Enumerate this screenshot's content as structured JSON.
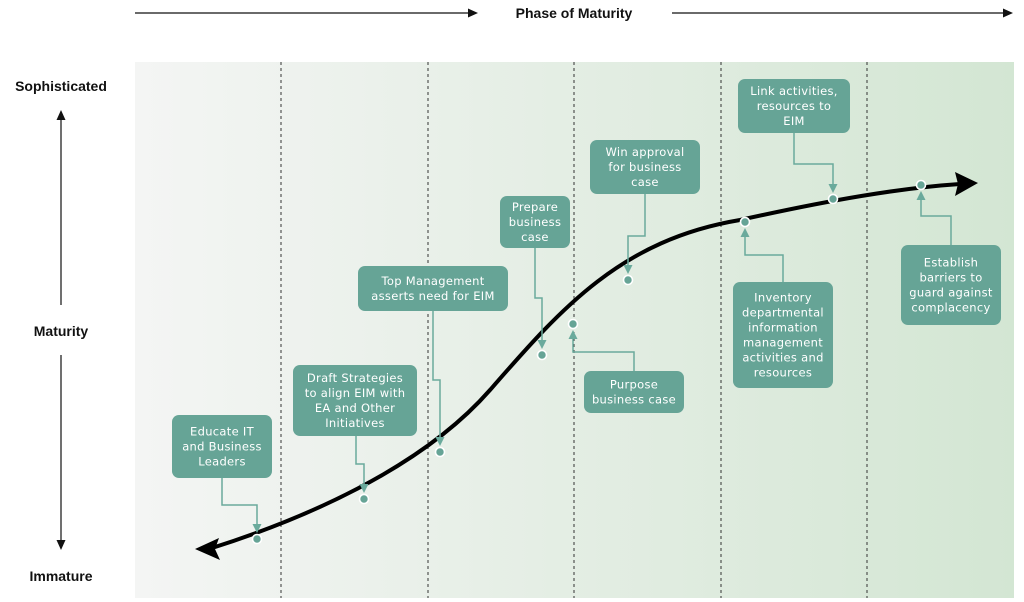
{
  "header": {
    "title": "Phase of Maturity"
  },
  "y_axis": {
    "top": "Sophisticated",
    "middle": "Maturity",
    "bottom": "Immature"
  },
  "colors": {
    "box": "#66a496",
    "connector": "#6aaa9c",
    "curve": "#000000",
    "band_start": "#f4f5f4",
    "band_end": "#d3e6d3",
    "divider": "#333333"
  },
  "steps": [
    {
      "id": "educate",
      "lines": [
        "Educate IT",
        "and Business",
        "Leaders"
      ]
    },
    {
      "id": "draft",
      "lines": [
        "Draft Strategies",
        "to align EIM with",
        "EA and Other",
        "Initiatives"
      ]
    },
    {
      "id": "topmgmt",
      "lines": [
        "Top Management",
        "asserts need for EIM"
      ]
    },
    {
      "id": "prepare",
      "lines": [
        "Prepare",
        "business",
        "case"
      ]
    },
    {
      "id": "purpose",
      "lines": [
        "Purpose",
        "business case"
      ]
    },
    {
      "id": "win",
      "lines": [
        "Win approval",
        "for business",
        "case"
      ]
    },
    {
      "id": "inventory",
      "lines": [
        "Inventory",
        "departmental",
        "information",
        "management",
        "activities and",
        "resources"
      ]
    },
    {
      "id": "link",
      "lines": [
        "Link activities,",
        "resources to",
        "EIM"
      ]
    },
    {
      "id": "establish",
      "lines": [
        "Establish",
        "barriers to",
        "guard against",
        "complacency"
      ]
    }
  ]
}
